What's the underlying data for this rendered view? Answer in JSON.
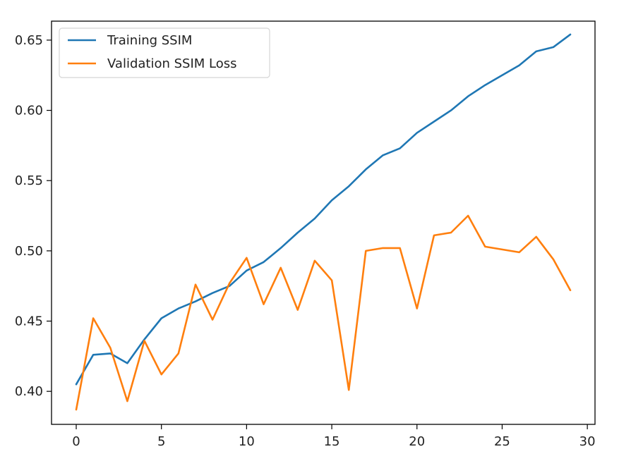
{
  "chart_data": {
    "type": "line",
    "title": "",
    "xlabel": "",
    "ylabel": "",
    "xlim": [
      -1.45,
      30.45
    ],
    "ylim": [
      0.3765,
      0.6635
    ],
    "xticks": [
      0,
      5,
      10,
      15,
      20,
      25,
      30
    ],
    "xtick_labels": [
      "0",
      "5",
      "10",
      "15",
      "20",
      "25",
      "30"
    ],
    "yticks": [
      0.4,
      0.45,
      0.5,
      0.55,
      0.6,
      0.65
    ],
    "ytick_labels": [
      "0.40",
      "0.45",
      "0.50",
      "0.55",
      "0.60",
      "0.65"
    ],
    "grid": false,
    "legend_position": "top-left",
    "x": [
      0,
      1,
      2,
      3,
      4,
      5,
      6,
      7,
      8,
      9,
      10,
      11,
      12,
      13,
      14,
      15,
      16,
      17,
      18,
      19,
      20,
      21,
      22,
      23,
      24,
      25,
      26,
      27,
      28,
      29
    ],
    "series": [
      {
        "name": "Training SSIM",
        "color": "#1f77b4",
        "values": [
          0.405,
          0.426,
          0.427,
          0.42,
          0.437,
          0.452,
          0.459,
          0.464,
          0.47,
          0.475,
          0.486,
          0.492,
          0.502,
          0.513,
          0.523,
          0.536,
          0.546,
          0.558,
          0.568,
          0.573,
          0.584,
          0.592,
          0.6,
          0.61,
          0.618,
          0.625,
          0.632,
          0.642,
          0.645,
          0.654
        ]
      },
      {
        "name": "Validation SSIM Loss",
        "color": "#ff7f0e",
        "values": [
          0.387,
          0.452,
          0.431,
          0.393,
          0.436,
          0.412,
          0.427,
          0.476,
          0.451,
          0.477,
          0.495,
          0.462,
          0.488,
          0.458,
          0.493,
          0.479,
          0.401,
          0.5,
          0.502,
          0.502,
          0.459,
          0.511,
          0.513,
          0.525,
          0.503,
          0.501,
          0.499,
          0.51,
          0.494,
          0.472
        ]
      }
    ]
  }
}
